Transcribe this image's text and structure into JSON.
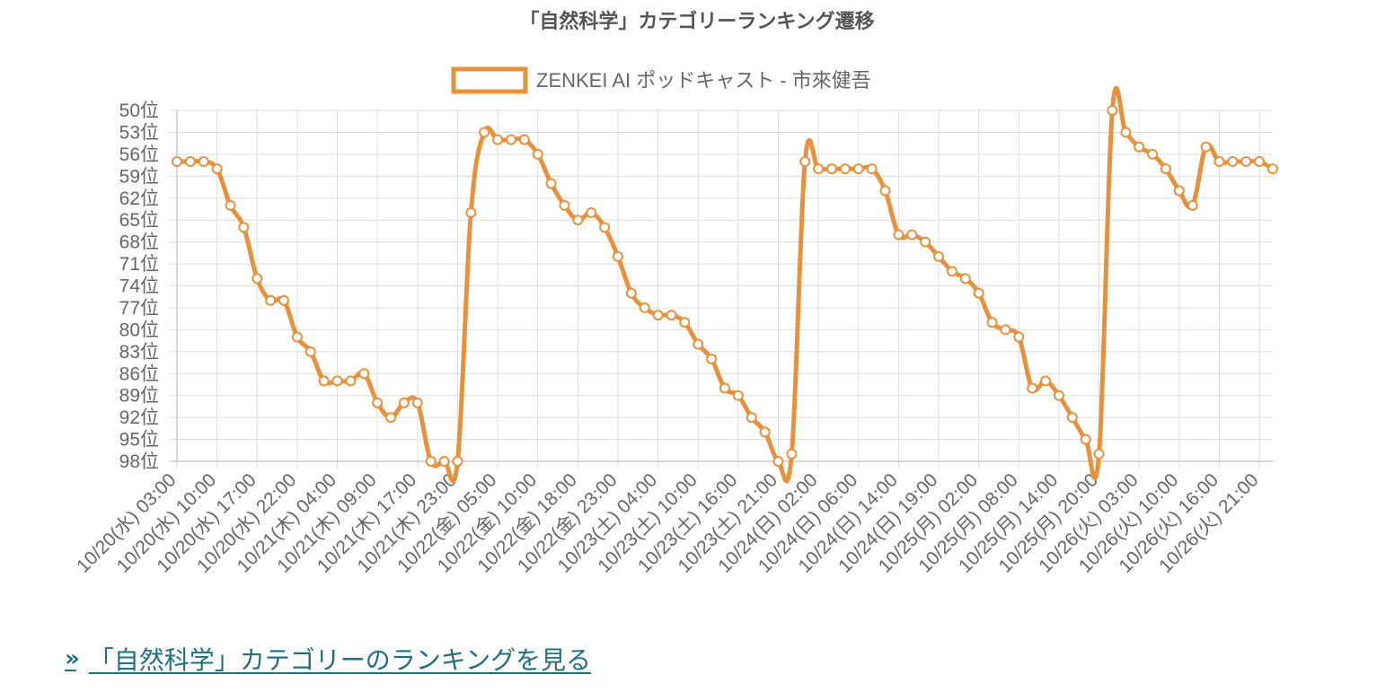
{
  "chart_data": {
    "type": "line",
    "title": "「自然科学」カテゴリーランキング遷移",
    "legend": {
      "position": "top",
      "label": "ZENKEI AI ポッドキャスト - 市來健吾"
    },
    "y_axis": {
      "reversed": true,
      "min": 50,
      "max": 98,
      "step": 3,
      "suffix": "位",
      "ticks": [
        "50位",
        "53位",
        "56位",
        "59位",
        "62位",
        "65位",
        "68位",
        "71位",
        "74位",
        "77位",
        "80位",
        "83位",
        "86位",
        "89位",
        "92位",
        "95位",
        "98位"
      ]
    },
    "x_tick_labels": [
      "10/20(水) 03:00",
      "10/20(水) 10:00",
      "10/20(水) 17:00",
      "10/20(水) 22:00",
      "10/21(木) 04:00",
      "10/21(木) 09:00",
      "10/21(木) 17:00",
      "10/21(木) 23:00",
      "10/22(金) 05:00",
      "10/22(金) 10:00",
      "10/22(金) 18:00",
      "10/22(金) 23:00",
      "10/23(土) 04:00",
      "10/23(土) 10:00",
      "10/23(土) 16:00",
      "10/23(土) 21:00",
      "10/24(日) 02:00",
      "10/24(日) 06:00",
      "10/24(日) 14:00",
      "10/24(日) 19:00",
      "10/25(月) 02:00",
      "10/25(月) 08:00",
      "10/25(月) 14:00",
      "10/25(月) 20:00",
      "10/26(火) 03:00",
      "10/26(火) 10:00",
      "10/26(火) 16:00",
      "10/26(火) 21:00"
    ],
    "series": [
      {
        "name": "ZENKEI AI ポッドキャスト - 市來健吾",
        "color": "#e8913d",
        "values": [
          57,
          57,
          57,
          58,
          63,
          66,
          73,
          76,
          76,
          81,
          83,
          87,
          87,
          87,
          86,
          90,
          92,
          90,
          90,
          98,
          98,
          98,
          64,
          53,
          54,
          54,
          54,
          56,
          60,
          63,
          65,
          64,
          66,
          70,
          75,
          77,
          78,
          78,
          79,
          82,
          84,
          88,
          89,
          92,
          94,
          98,
          97,
          57,
          58,
          58,
          58,
          58,
          58,
          61,
          67,
          67,
          68,
          70,
          72,
          73,
          75,
          79,
          80,
          81,
          88,
          87,
          89,
          92,
          95,
          97,
          50,
          53,
          55,
          56,
          58,
          61,
          63,
          55,
          57,
          57,
          57,
          57,
          58
        ]
      }
    ]
  },
  "footer_link": {
    "chevrons": "»",
    "label": "「自然科学」カテゴリーのランキングを見る"
  }
}
